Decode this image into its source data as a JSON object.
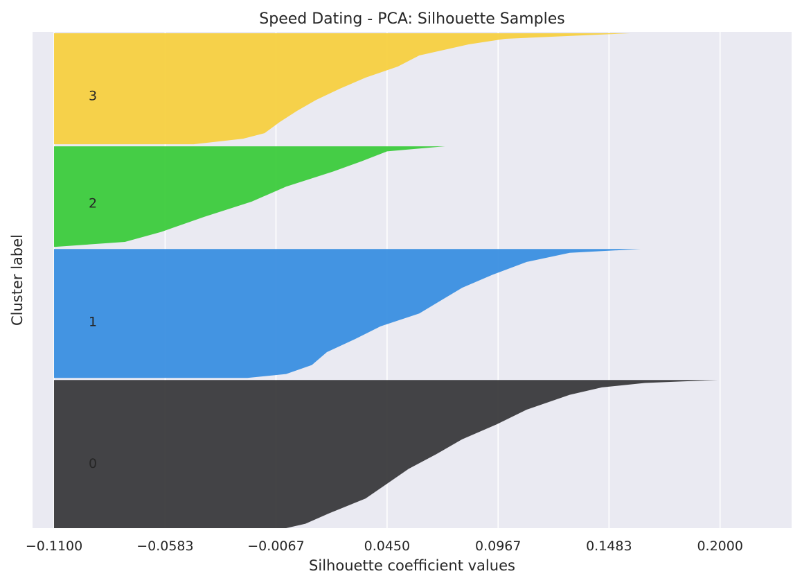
{
  "chart_data": {
    "type": "area",
    "title": "Speed Dating - PCA: Silhouette Samples",
    "xlabel": "Silhouette coefficient values",
    "ylabel": "Cluster label",
    "xlim": [
      -0.12,
      0.2333
    ],
    "x_ticks": [
      -0.11,
      -0.0583,
      -0.0067,
      0.045,
      0.0967,
      0.1483,
      0.2
    ],
    "x_tick_labels": [
      "−0.1100",
      "−0.0583",
      "−0.0067",
      "0.0450",
      "0.0967",
      "0.1483",
      "0.2000"
    ],
    "grid": "vertical",
    "background_color": "#eaeaf2",
    "clusters": [
      {
        "label": "0",
        "color": "#3a3a3c",
        "relative_size": 215,
        "profile": [
          [
            0.0,
            0.199
          ],
          [
            0.02,
            0.165
          ],
          [
            0.05,
            0.145
          ],
          [
            0.1,
            0.13
          ],
          [
            0.2,
            0.11
          ],
          [
            0.3,
            0.096
          ],
          [
            0.4,
            0.08
          ],
          [
            0.5,
            0.068
          ],
          [
            0.6,
            0.055
          ],
          [
            0.7,
            0.045
          ],
          [
            0.8,
            0.035
          ],
          [
            0.9,
            0.018
          ],
          [
            0.97,
            0.007
          ],
          [
            1.0,
            -0.002
          ]
        ]
      },
      {
        "label": "1",
        "color": "#3a8fe0",
        "relative_size": 187,
        "profile": [
          [
            0.0,
            0.163
          ],
          [
            0.03,
            0.13
          ],
          [
            0.1,
            0.11
          ],
          [
            0.2,
            0.094
          ],
          [
            0.3,
            0.08
          ],
          [
            0.4,
            0.07
          ],
          [
            0.5,
            0.06
          ],
          [
            0.6,
            0.042
          ],
          [
            0.7,
            0.03
          ],
          [
            0.8,
            0.017
          ],
          [
            0.9,
            0.01
          ],
          [
            0.97,
            -0.002
          ],
          [
            1.0,
            -0.02
          ]
        ]
      },
      {
        "label": "2",
        "color": "#3ccb3c",
        "relative_size": 146,
        "profile": [
          [
            0.0,
            0.072
          ],
          [
            0.05,
            0.045
          ],
          [
            0.15,
            0.033
          ],
          [
            0.25,
            0.02
          ],
          [
            0.4,
            -0.002
          ],
          [
            0.55,
            -0.018
          ],
          [
            0.7,
            -0.04
          ],
          [
            0.85,
            -0.06
          ],
          [
            0.95,
            -0.077
          ],
          [
            1.0,
            -0.11
          ]
        ]
      },
      {
        "label": "3",
        "color": "#f7d040",
        "relative_size": 161,
        "profile": [
          [
            0.0,
            0.158
          ],
          [
            0.05,
            0.1
          ],
          [
            0.1,
            0.083
          ],
          [
            0.2,
            0.06
          ],
          [
            0.3,
            0.05
          ],
          [
            0.4,
            0.035
          ],
          [
            0.5,
            0.023
          ],
          [
            0.6,
            0.012
          ],
          [
            0.7,
            0.003
          ],
          [
            0.8,
            -0.005
          ],
          [
            0.9,
            -0.012
          ],
          [
            0.95,
            -0.022
          ],
          [
            1.0,
            -0.045
          ]
        ]
      }
    ]
  }
}
